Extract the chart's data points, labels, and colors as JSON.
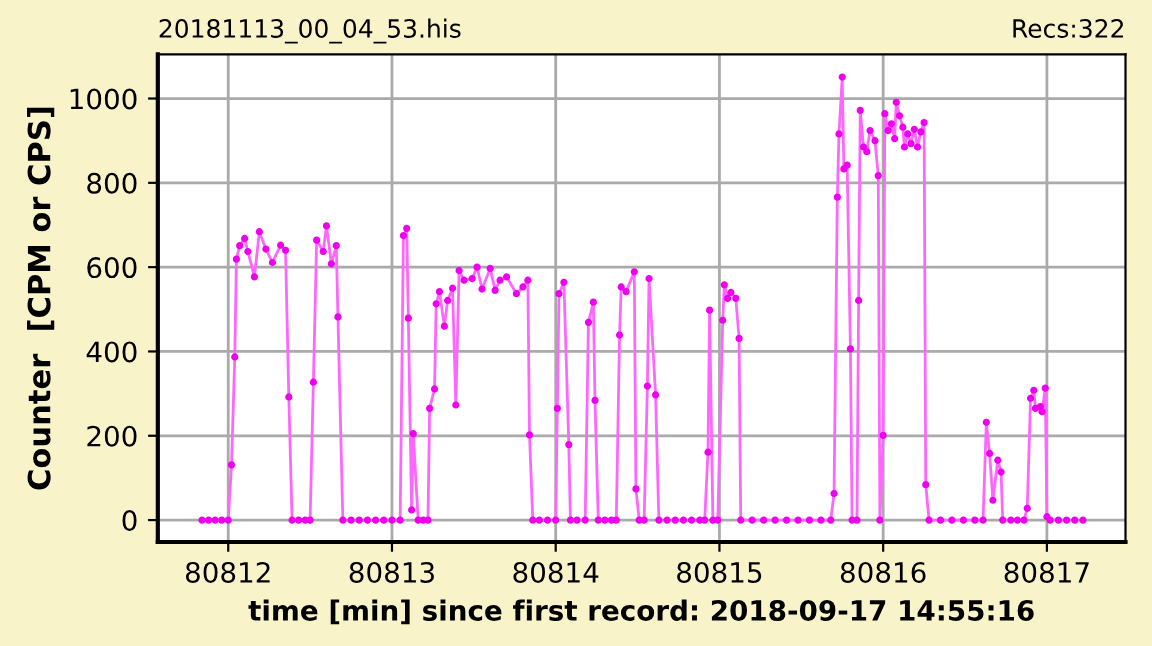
{
  "chart_data": {
    "type": "line",
    "title": "20181113_00_04_53.his",
    "annotations": [
      "Recs:322"
    ],
    "xlabel": "time [min] since first record: 2018-09-17 14:55:16",
    "ylabel": "Counter  [CPM or CPS]",
    "xlim": [
      80811.57,
      80817.48
    ],
    "ylim": [
      -52,
      1105
    ],
    "xticks": [
      80812,
      80813,
      80814,
      80815,
      80816,
      80817
    ],
    "yticks": [
      0,
      200,
      400,
      600,
      800,
      1000
    ],
    "grid": true,
    "marker": "circle",
    "line_style": "solid",
    "legend": false,
    "series": [
      {
        "color": "#ff66ff",
        "x": [
          80811.84,
          80811.88,
          80811.92,
          80811.96,
          80812.0,
          80812.02,
          80812.04,
          80812.05,
          80812.07,
          80812.1,
          80812.12,
          80812.16,
          80812.19,
          80812.23,
          80812.27,
          80812.32,
          80812.35,
          80812.37,
          80812.39,
          80812.43,
          80812.47,
          80812.5,
          80812.52,
          80812.54,
          80812.58,
          80812.6,
          80812.63,
          80812.66,
          80812.67,
          80812.7,
          80812.75,
          80812.8,
          80812.85,
          80812.9,
          80812.95,
          80813.0,
          80813.05,
          80813.07,
          80813.09,
          80813.1,
          80813.12,
          80813.13,
          80813.16,
          80813.19,
          80813.22,
          80813.23,
          80813.26,
          80813.27,
          80813.29,
          80813.32,
          80813.34,
          80813.37,
          80813.39,
          80813.41,
          80813.44,
          80813.49,
          80813.52,
          80813.55,
          80813.6,
          80813.63,
          80813.66,
          80813.7,
          80813.76,
          80813.8,
          80813.83,
          80813.84,
          80813.86,
          80813.9,
          80813.95,
          80814.0,
          80814.01,
          80814.02,
          80814.05,
          80814.08,
          80814.09,
          80814.13,
          80814.18,
          80814.2,
          80814.23,
          80814.24,
          80814.26,
          80814.3,
          80814.34,
          80814.37,
          80814.39,
          80814.4,
          80814.43,
          80814.48,
          80814.49,
          80814.51,
          80814.54,
          80814.56,
          80814.57,
          80814.61,
          80814.63,
          80814.68,
          80814.73,
          80814.78,
          80814.83,
          80814.88,
          80814.91,
          80814.93,
          80814.94,
          80814.96,
          80814.99,
          80815.02,
          80815.03,
          80815.05,
          80815.07,
          80815.1,
          80815.12,
          80815.13,
          80815.2,
          80815.27,
          80815.34,
          80815.41,
          80815.48,
          80815.55,
          80815.62,
          80815.68,
          80815.7,
          80815.72,
          80815.73,
          80815.75,
          80815.76,
          80815.78,
          80815.8,
          80815.81,
          80815.84,
          80815.85,
          80815.86,
          80815.88,
          80815.9,
          80815.92,
          80815.95,
          80815.97,
          80815.98,
          80816.0,
          80816.01,
          80816.03,
          80816.05,
          80816.07,
          80816.08,
          80816.1,
          80816.12,
          80816.13,
          80816.15,
          80816.17,
          80816.19,
          80816.21,
          80816.23,
          80816.25,
          80816.26,
          80816.28,
          80816.35,
          80816.42,
          80816.49,
          80816.56,
          80816.61,
          80816.63,
          80816.65,
          80816.67,
          80816.7,
          80816.72,
          80816.73,
          80816.78,
          80816.82,
          80816.86,
          80816.88,
          80816.9,
          80816.92,
          80816.93,
          80816.96,
          80816.97,
          80816.99,
          80817.0,
          80817.02,
          80817.07,
          80817.12,
          80817.17,
          80817.22
        ],
        "values": [
          0,
          0,
          0,
          0,
          0,
          131,
          387,
          619,
          651,
          668,
          637,
          577,
          684,
          643,
          611,
          652,
          640,
          292,
          0,
          0,
          0,
          0,
          327,
          664,
          637,
          698,
          608,
          651,
          482,
          0,
          0,
          0,
          0,
          0,
          0,
          0,
          0,
          675,
          692,
          479,
          24,
          205,
          0,
          0,
          0,
          265,
          311,
          513,
          542,
          460,
          521,
          550,
          273,
          592,
          569,
          573,
          600,
          548,
          597,
          545,
          569,
          577,
          537,
          553,
          569,
          202,
          0,
          0,
          0,
          0,
          265,
          537,
          564,
          179,
          0,
          0,
          0,
          469,
          517,
          284,
          0,
          0,
          0,
          0,
          439,
          553,
          542,
          589,
          74,
          0,
          0,
          318,
          573,
          297,
          0,
          0,
          0,
          0,
          0,
          0,
          0,
          161,
          498,
          0,
          0,
          474,
          558,
          526,
          540,
          526,
          431,
          0,
          0,
          0,
          0,
          0,
          0,
          0,
          0,
          0,
          63,
          766,
          916,
          1051,
          833,
          842,
          406,
          0,
          0,
          521,
          972,
          885,
          874,
          924,
          900,
          817,
          0,
          201,
          964,
          924,
          940,
          905,
          991,
          959,
          932,
          885,
          916,
          893,
          927,
          885,
          921,
          943,
          84,
          0,
          0,
          0,
          0,
          0,
          0,
          232,
          158,
          47,
          142,
          114,
          0,
          0,
          0,
          0,
          28,
          289,
          308,
          265,
          269,
          257,
          313,
          8,
          0,
          0,
          0,
          0,
          0
        ]
      }
    ]
  }
}
